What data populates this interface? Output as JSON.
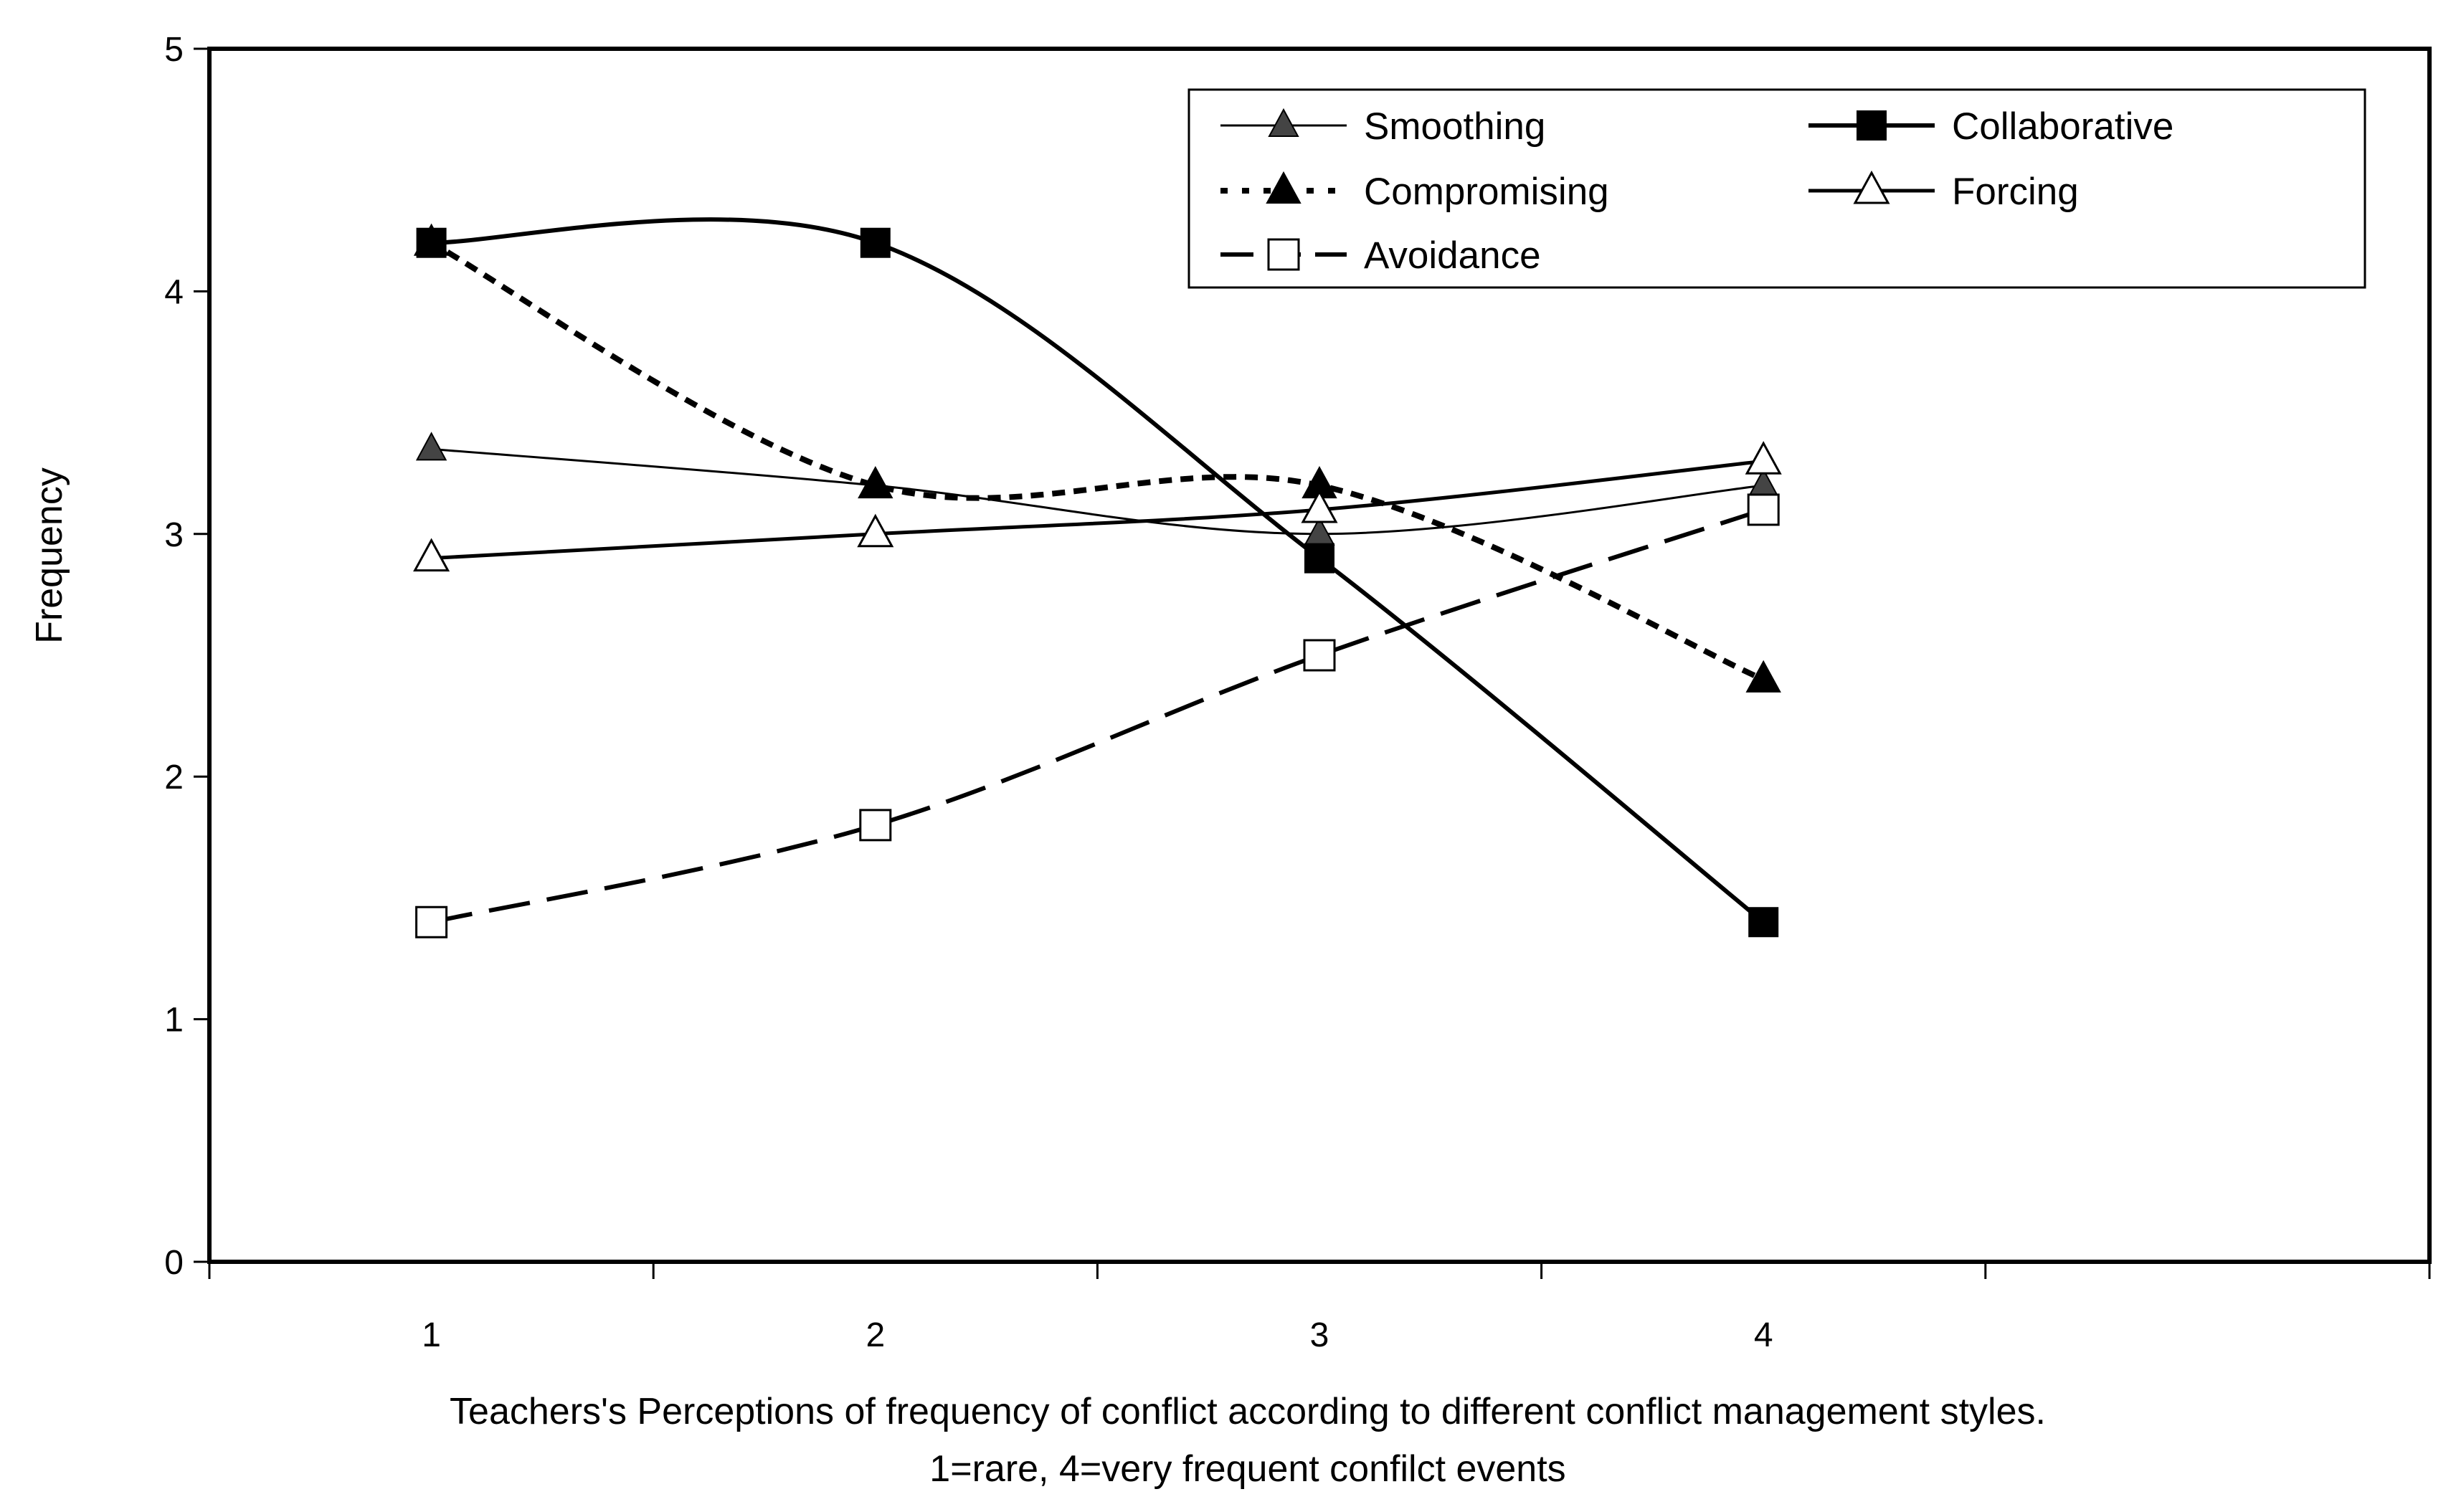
{
  "chart_data": {
    "type": "line",
    "title": "",
    "xlabel": "Teachers's Perceptions of frequency of conflict according to different conflict management styles.",
    "xlabel_line2": "1=rare, 4=very frequent confilct events",
    "ylabel": "Frequency",
    "x": [
      1,
      2,
      3,
      4
    ],
    "xlim": [
      0.5,
      5.5
    ],
    "ylim": [
      0,
      5
    ],
    "yticks": [
      "0",
      "1",
      "2",
      "3",
      "4",
      "5"
    ],
    "xticks": [
      "1",
      "2",
      "3",
      "4"
    ],
    "grid": false,
    "legend_position": "top-right",
    "series": [
      {
        "name": "Smoothing",
        "values": [
          3.35,
          3.2,
          3.0,
          3.2
        ],
        "color": "#000000",
        "marker": "triangle-small",
        "dash": "solid-thin"
      },
      {
        "name": "Collaborative",
        "values": [
          4.2,
          4.2,
          2.9,
          1.4
        ],
        "color": "#000000",
        "marker": "square-filled",
        "dash": "solid-thick"
      },
      {
        "name": "Compromising",
        "values": [
          4.2,
          3.2,
          3.2,
          2.4
        ],
        "color": "#000000",
        "marker": "triangle-filled",
        "dash": "dotted"
      },
      {
        "name": "Forcing",
        "values": [
          2.9,
          3.0,
          3.1,
          3.3
        ],
        "color": "#000000",
        "marker": "triangle-open",
        "dash": "solid"
      },
      {
        "name": "Avoidance",
        "values": [
          1.4,
          1.8,
          2.5,
          3.1
        ],
        "color": "#000000",
        "marker": "square-open",
        "dash": "dashed"
      }
    ]
  }
}
